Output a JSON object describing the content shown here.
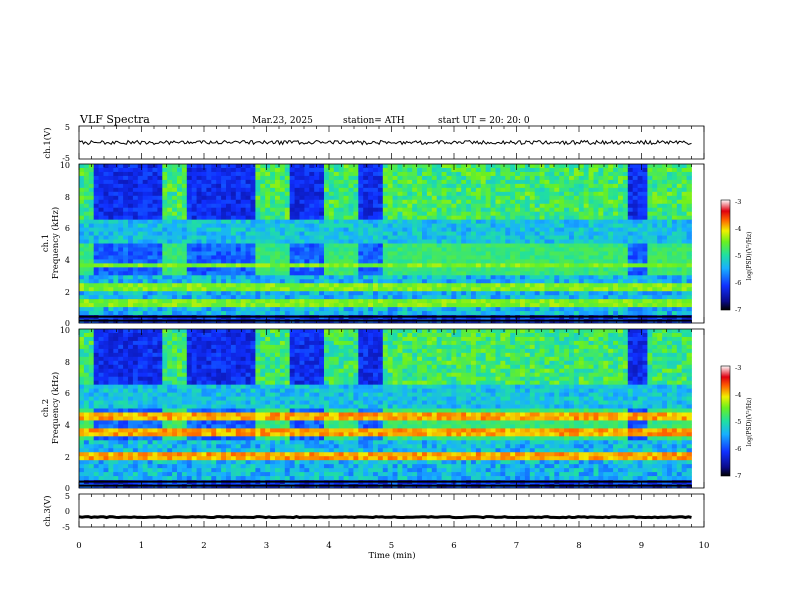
{
  "header": {
    "title": "VLF  Spectra",
    "date": "Mar.23, 2025",
    "station": "station= ATH",
    "start": "start  UT  =    20: 20: 0"
  },
  "chart_data": [
    {
      "id": "ch1-voltage",
      "type": "line",
      "ylabel": "ch.1(V)",
      "ylim": [
        -5,
        5
      ],
      "yticks": [
        "5",
        "-5"
      ],
      "xlim": [
        0,
        10
      ],
      "series_color": "#000000",
      "baseline_v": 0,
      "noise_amplitude_v": 0.6
    },
    {
      "id": "ch1-spectrogram",
      "type": "heatmap",
      "ylabel": "ch.1\nFrequency (kHz)",
      "ylim": [
        0,
        10
      ],
      "yticks": [
        "0",
        "2",
        "4",
        "6",
        "8",
        "10"
      ],
      "xlim": [
        0,
        10
      ],
      "data_end_min": 9.8,
      "colorbar": {
        "label": "log(PSD)(V²/Hz)",
        "range": [
          -7,
          -3
        ],
        "ticks": [
          "-3",
          "-4",
          "-5",
          "-6",
          "-7"
        ]
      },
      "quiet_intervals_min": [
        [
          0.2,
          1.35
        ],
        [
          1.75,
          2.8
        ],
        [
          3.35,
          3.95
        ],
        [
          4.45,
          4.85
        ],
        [
          8.8,
          9.1
        ]
      ],
      "emission_bands_khz": [
        1.2,
        2.3,
        3.6
      ]
    },
    {
      "id": "ch2-spectrogram",
      "type": "heatmap",
      "ylabel": "ch.2\nFrequency (kHz)",
      "ylim": [
        0,
        10
      ],
      "yticks": [
        "0",
        "2",
        "4",
        "6",
        "8",
        "10"
      ],
      "xlim": [
        0,
        10
      ],
      "data_end_min": 9.8,
      "colorbar": {
        "label": "log(PSD)(V²/Hz)",
        "range": [
          -7,
          -3
        ],
        "ticks": [
          "-3",
          "-4",
          "-5",
          "-6",
          "-7"
        ]
      },
      "quiet_intervals_min": [
        [
          0.2,
          1.35
        ],
        [
          1.75,
          2.8
        ],
        [
          3.35,
          3.95
        ],
        [
          4.45,
          4.85
        ],
        [
          8.8,
          9.1
        ]
      ],
      "emission_bands_khz": [
        1.9,
        2.1,
        3.5,
        4.5
      ]
    },
    {
      "id": "ch3-voltage",
      "type": "line",
      "ylabel": "ch.3(V)",
      "ylim": [
        -5,
        5
      ],
      "yticks": [
        "5",
        "0",
        "-5"
      ],
      "xlim": [
        0,
        10
      ],
      "series_color": "#000000",
      "baseline_v": -2.0,
      "noise_amplitude_v": 0.15
    }
  ],
  "x_axis": {
    "label": "Time  (min)",
    "ticks": [
      "0",
      "1",
      "2",
      "3",
      "4",
      "5",
      "6",
      "7",
      "8",
      "9",
      "10"
    ]
  }
}
